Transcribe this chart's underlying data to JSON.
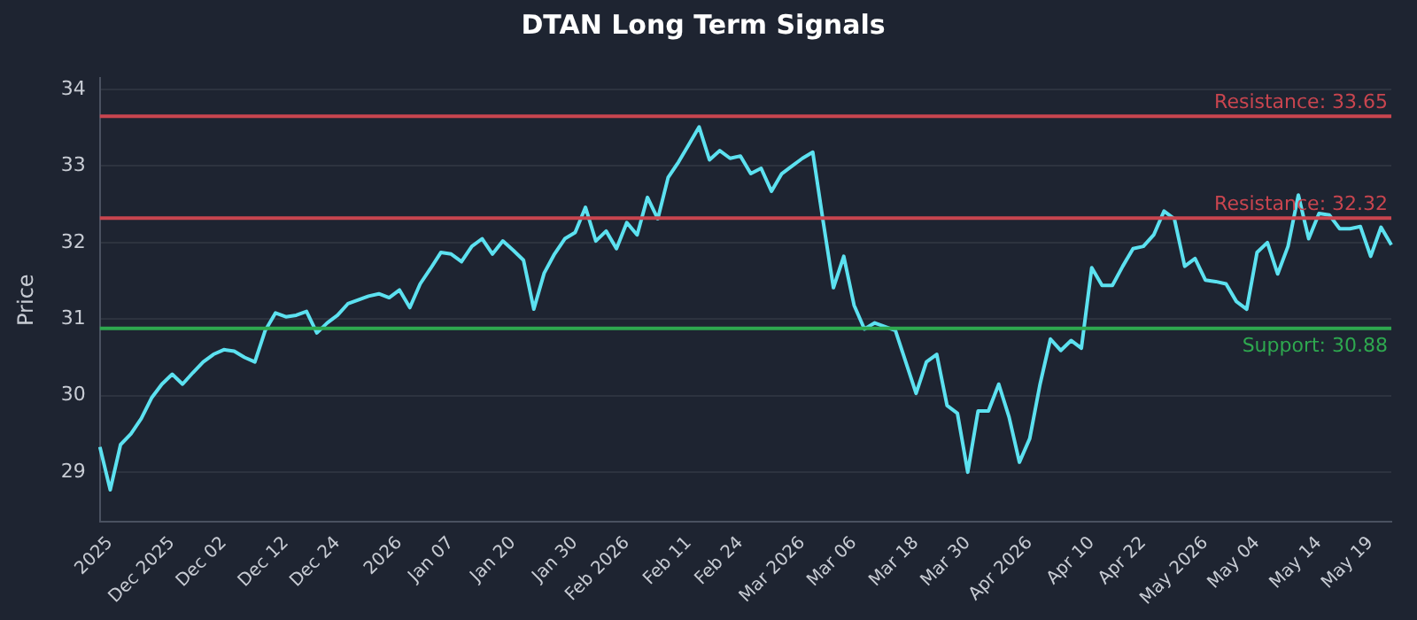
{
  "chart_data": {
    "type": "line",
    "title": "DTAN Long Term Signals",
    "ylabel": "Price",
    "categories": [
      null,
      "2025",
      null,
      null,
      null,
      null,
      null,
      "Dec 2025",
      null,
      null,
      null,
      null,
      "Dec 02",
      null,
      null,
      null,
      null,
      null,
      "Dec 12",
      null,
      null,
      null,
      null,
      "Dec 24",
      null,
      null,
      null,
      null,
      null,
      "2026",
      null,
      null,
      null,
      null,
      "Jan 07",
      null,
      null,
      null,
      null,
      null,
      "Jan 20",
      null,
      null,
      null,
      null,
      null,
      "Jan 30",
      null,
      null,
      null,
      null,
      "Feb 2026",
      null,
      null,
      null,
      null,
      null,
      "Feb 11",
      null,
      null,
      null,
      null,
      "Feb 24",
      null,
      null,
      null,
      null,
      null,
      "Mar 2026",
      null,
      null,
      null,
      null,
      "Mar 06",
      null,
      null,
      null,
      null,
      null,
      "Mar 18",
      null,
      null,
      null,
      null,
      "Mar 30",
      null,
      null,
      null,
      null,
      null,
      "Apr 2026",
      null,
      null,
      null,
      null,
      null,
      "Apr 10",
      null,
      null,
      null,
      null,
      "Apr 22",
      null,
      null,
      null,
      null,
      null,
      "May 2026",
      null,
      null,
      null,
      null,
      "May 04",
      null,
      null,
      null,
      null,
      null,
      "May 14",
      null,
      null,
      null,
      null,
      "May 19",
      null,
      null
    ],
    "series": [
      {
        "color": "#5ce1f0",
        "values": [
          29.33,
          28.77,
          29.36,
          29.5,
          29.7,
          29.97,
          30.15,
          30.28,
          30.15,
          30.3,
          30.44,
          30.54,
          30.6,
          30.58,
          30.5,
          30.44,
          30.85,
          31.08,
          31.03,
          31.05,
          31.1,
          30.82,
          30.95,
          31.05,
          31.2,
          31.25,
          31.3,
          31.33,
          31.28,
          31.38,
          31.15,
          31.46,
          31.66,
          31.87,
          31.85,
          31.75,
          31.95,
          32.05,
          31.85,
          32.02,
          31.9,
          31.77,
          31.13,
          31.6,
          31.85,
          32.05,
          32.13,
          32.46,
          32.02,
          32.15,
          31.92,
          32.26,
          32.1,
          32.59,
          32.31,
          32.85,
          33.05,
          33.28,
          33.51,
          33.08,
          33.2,
          33.1,
          33.13,
          32.9,
          32.97,
          32.67,
          32.9,
          33.0,
          33.1,
          33.18,
          32.28,
          31.41,
          31.82,
          31.18,
          30.87,
          30.95,
          30.9,
          30.85,
          30.44,
          30.03,
          30.44,
          30.54,
          29.87,
          29.77,
          29.0,
          29.8,
          29.8,
          30.15,
          29.72,
          29.13,
          29.44,
          30.15,
          30.74,
          30.59,
          30.72,
          30.62,
          31.67,
          31.44,
          31.44,
          31.69,
          31.92,
          31.95,
          32.1,
          32.41,
          32.31,
          31.69,
          31.79,
          31.51,
          31.49,
          31.46,
          31.23,
          31.13,
          31.87,
          32.0,
          31.59,
          31.95,
          32.62,
          32.05,
          32.38,
          32.36,
          32.18,
          32.18,
          32.21,
          31.82,
          32.2,
          31.97
        ]
      }
    ],
    "ylim": [
      28.35,
      34.15
    ],
    "yticks": [
      29,
      30,
      31,
      32,
      33,
      34
    ],
    "grid": "y",
    "marker": "none",
    "line_style": "solid",
    "ref_lines": [
      {
        "axis": "y",
        "value": 33.65,
        "label": "Resistance: 33.65",
        "color": "#c9454f"
      },
      {
        "axis": "y",
        "value": 32.32,
        "label": "Resistance: 32.32",
        "color": "#c9454f"
      },
      {
        "axis": "y",
        "value": 30.88,
        "label": "Support: 30.88",
        "color": "#2ea84f"
      }
    ]
  }
}
